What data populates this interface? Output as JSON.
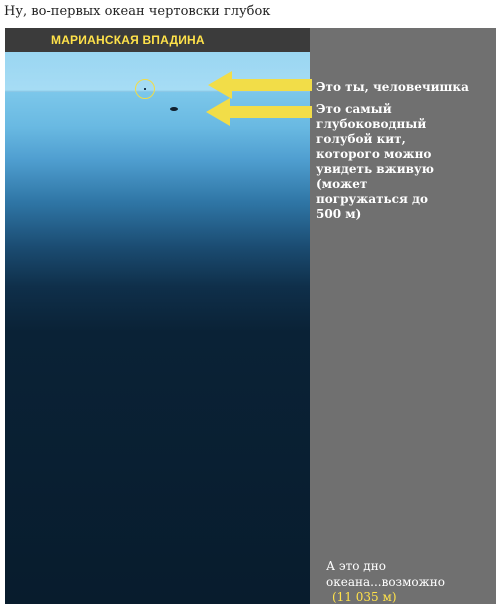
{
  "caption": "Ну, во-первых океан чертовски глубок",
  "title": "МАРИАНСКАЯ ВПАДИНА",
  "annotations": {
    "you": "Это ты, человечишка",
    "whale": "Это самый глубоководный голубой кит, которого можно увидеть вживую (может погружаться до 500 м)"
  },
  "bottom": {
    "text": "А это дно океана...возможно",
    "depth": "(11 035 м)"
  },
  "colors": {
    "title": "#ffe24a",
    "arrow": "#f2dd48",
    "frame": "#707070",
    "deep_water": "#081c2d"
  },
  "icons": {
    "arrow": "arrow-left-icon",
    "marker": "circle-marker-icon",
    "whale": "whale-icon"
  }
}
